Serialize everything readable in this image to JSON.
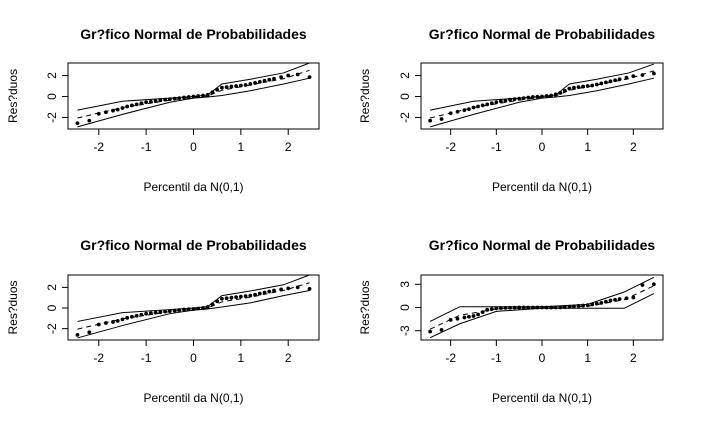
{
  "chart_data": [
    {
      "type": "scatter",
      "title": "Gr?fico Normal de Probabilidades",
      "xlabel": "Percentil da N(0,1)",
      "ylabel": "Res?duos",
      "xlim": [
        -2.65,
        2.65
      ],
      "ylim": [
        -3.1,
        3.2
      ],
      "xticks": [
        -2,
        -1,
        0,
        1,
        2
      ],
      "yticks": [
        -2,
        0,
        2
      ],
      "shape": "sigmoid",
      "points_x": [
        -2.45,
        -2.2,
        -2.0,
        -1.85,
        -1.7,
        -1.6,
        -1.5,
        -1.4,
        -1.3,
        -1.2,
        -1.1,
        -1.0,
        -0.9,
        -0.8,
        -0.7,
        -0.6,
        -0.5,
        -0.4,
        -0.3,
        -0.2,
        -0.1,
        0.0,
        0.1,
        0.2,
        0.3,
        0.4,
        0.5,
        0.6,
        0.7,
        0.8,
        0.9,
        1.0,
        1.1,
        1.2,
        1.3,
        1.4,
        1.5,
        1.6,
        1.7,
        1.85,
        2.0,
        2.2,
        2.45
      ],
      "points_y": [
        -2.55,
        -2.3,
        -1.65,
        -1.5,
        -1.35,
        -1.25,
        -1.1,
        -0.95,
        -0.85,
        -0.75,
        -0.65,
        -0.55,
        -0.5,
        -0.45,
        -0.35,
        -0.3,
        -0.25,
        -0.2,
        -0.15,
        -0.1,
        -0.05,
        0.0,
        0.05,
        0.1,
        0.15,
        0.4,
        0.65,
        0.85,
        0.9,
        0.95,
        1.0,
        1.05,
        1.1,
        1.2,
        1.3,
        1.4,
        1.5,
        1.6,
        1.7,
        1.85,
        2.0,
        2.1,
        1.85
      ],
      "envelope_upper": {
        "x": [
          -2.45,
          -1.5,
          -0.5,
          0.0,
          0.3,
          0.6,
          1.2,
          1.9,
          2.45
        ],
        "y": [
          -1.3,
          -0.45,
          -0.15,
          0.0,
          0.15,
          1.2,
          1.65,
          2.25,
          3.2
        ]
      },
      "envelope_lower": {
        "x": [
          -2.45,
          -1.5,
          -0.5,
          0.0,
          0.3,
          0.6,
          1.2,
          1.9,
          2.45
        ],
        "y": [
          -2.9,
          -1.7,
          -0.55,
          -0.15,
          -0.05,
          0.1,
          0.55,
          1.2,
          1.75
        ]
      },
      "envelope_mean": {
        "x": [
          -2.45,
          -1.5,
          -0.5,
          0.0,
          0.3,
          0.6,
          1.2,
          1.9,
          2.45
        ],
        "y": [
          -2.05,
          -1.05,
          -0.35,
          -0.05,
          0.05,
          0.6,
          1.1,
          1.7,
          2.5
        ]
      }
    },
    {
      "type": "scatter",
      "title": "Gr?fico Normal de Probabilidades",
      "xlabel": "Percentil da N(0,1)",
      "ylabel": "Res?duos",
      "xlim": [
        -2.65,
        2.65
      ],
      "ylim": [
        -3.1,
        3.2
      ],
      "xticks": [
        -2,
        -1,
        0,
        1,
        2
      ],
      "yticks": [
        -2,
        0,
        2
      ],
      "shape": "sigmoid",
      "points_x": [
        -2.45,
        -2.2,
        -2.0,
        -1.85,
        -1.7,
        -1.6,
        -1.5,
        -1.4,
        -1.3,
        -1.2,
        -1.1,
        -1.0,
        -0.9,
        -0.8,
        -0.7,
        -0.6,
        -0.5,
        -0.4,
        -0.3,
        -0.2,
        -0.1,
        0.0,
        0.1,
        0.2,
        0.3,
        0.4,
        0.5,
        0.6,
        0.7,
        0.8,
        0.9,
        1.0,
        1.1,
        1.2,
        1.3,
        1.4,
        1.5,
        1.6,
        1.7,
        1.85,
        2.0,
        2.2,
        2.45
      ],
      "points_y": [
        -2.3,
        -2.15,
        -1.6,
        -1.45,
        -1.3,
        -1.2,
        -1.05,
        -0.95,
        -0.85,
        -0.75,
        -0.65,
        -0.55,
        -0.45,
        -0.4,
        -0.3,
        -0.25,
        -0.2,
        -0.15,
        -0.1,
        -0.05,
        -0.02,
        0.0,
        0.05,
        0.1,
        0.2,
        0.35,
        0.55,
        0.75,
        0.85,
        0.9,
        0.95,
        1.0,
        1.05,
        1.15,
        1.25,
        1.35,
        1.45,
        1.55,
        1.65,
        1.8,
        1.95,
        2.05,
        2.2
      ],
      "envelope_upper": {
        "x": [
          -2.45,
          -1.5,
          -0.5,
          0.0,
          0.3,
          0.6,
          1.2,
          1.9,
          2.45
        ],
        "y": [
          -1.3,
          -0.45,
          -0.15,
          0.0,
          0.15,
          1.2,
          1.65,
          2.25,
          3.1
        ]
      },
      "envelope_lower": {
        "x": [
          -2.45,
          -1.5,
          -0.5,
          0.0,
          0.3,
          0.6,
          1.2,
          1.9,
          2.45
        ],
        "y": [
          -2.9,
          -1.7,
          -0.55,
          -0.15,
          -0.05,
          0.1,
          0.55,
          1.2,
          1.75
        ]
      },
      "envelope_mean": {
        "x": [
          -2.45,
          -1.5,
          -0.5,
          0.0,
          0.3,
          0.6,
          1.2,
          1.9,
          2.45
        ],
        "y": [
          -2.05,
          -1.05,
          -0.35,
          -0.05,
          0.05,
          0.6,
          1.1,
          1.7,
          2.45
        ]
      }
    },
    {
      "type": "scatter",
      "title": "Gr?fico Normal de Probabilidades",
      "xlabel": "Percentil da N(0,1)",
      "ylabel": "Res?duos",
      "xlim": [
        -2.65,
        2.65
      ],
      "ylim": [
        -3.1,
        3.2
      ],
      "xticks": [
        -2,
        -1,
        0,
        1,
        2
      ],
      "yticks": [
        -2,
        0,
        2
      ],
      "shape": "sigmoid",
      "points_x": [
        -2.45,
        -2.2,
        -2.0,
        -1.85,
        -1.7,
        -1.6,
        -1.5,
        -1.4,
        -1.3,
        -1.2,
        -1.1,
        -1.0,
        -0.9,
        -0.8,
        -0.7,
        -0.6,
        -0.5,
        -0.4,
        -0.3,
        -0.2,
        -0.1,
        0.0,
        0.1,
        0.2,
        0.3,
        0.4,
        0.5,
        0.6,
        0.7,
        0.8,
        0.9,
        1.0,
        1.1,
        1.2,
        1.3,
        1.4,
        1.5,
        1.6,
        1.7,
        1.85,
        2.0,
        2.2,
        2.45
      ],
      "points_y": [
        -2.6,
        -2.35,
        -1.6,
        -1.45,
        -1.35,
        -1.25,
        -1.1,
        -0.95,
        -0.85,
        -0.75,
        -0.65,
        -0.55,
        -0.5,
        -0.45,
        -0.4,
        -0.35,
        -0.3,
        -0.25,
        -0.2,
        -0.15,
        -0.12,
        -0.1,
        -0.05,
        0.0,
        0.1,
        0.35,
        0.65,
        0.9,
        0.95,
        1.0,
        1.05,
        1.1,
        1.15,
        1.2,
        1.3,
        1.4,
        1.5,
        1.6,
        1.7,
        1.8,
        1.9,
        2.0,
        1.85
      ],
      "envelope_upper": {
        "x": [
          -2.45,
          -1.5,
          -0.5,
          0.0,
          0.3,
          0.6,
          1.2,
          1.9,
          2.45
        ],
        "y": [
          -1.3,
          -0.45,
          -0.15,
          0.0,
          0.15,
          1.2,
          1.65,
          2.25,
          3.2
        ]
      },
      "envelope_lower": {
        "x": [
          -2.45,
          -1.5,
          -0.5,
          0.0,
          0.3,
          0.6,
          1.2,
          1.9,
          2.45
        ],
        "y": [
          -2.9,
          -1.7,
          -0.55,
          -0.2,
          -0.1,
          0.1,
          0.5,
          1.2,
          1.7
        ]
      },
      "envelope_mean": {
        "x": [
          -2.45,
          -1.5,
          -0.5,
          0.0,
          0.3,
          0.6,
          1.2,
          1.9,
          2.45
        ],
        "y": [
          -2.05,
          -1.05,
          -0.35,
          -0.1,
          0.0,
          0.6,
          1.05,
          1.7,
          2.45
        ]
      }
    },
    {
      "type": "scatter",
      "title": "Gr?fico Normal de Probabilidades",
      "xlabel": "Percentil da N(0,1)",
      "ylabel": "Res?duos",
      "xlim": [
        -2.65,
        2.65
      ],
      "ylim": [
        -4.2,
        4.2
      ],
      "xticks": [
        -2,
        -1,
        0,
        1,
        2
      ],
      "yticks": [
        -3,
        0,
        3
      ],
      "shape": "flat-center",
      "points_x": [
        -2.45,
        -2.2,
        -2.0,
        -1.85,
        -1.7,
        -1.6,
        -1.5,
        -1.4,
        -1.3,
        -1.2,
        -1.1,
        -1.0,
        -0.9,
        -0.8,
        -0.7,
        -0.6,
        -0.5,
        -0.4,
        -0.3,
        -0.2,
        -0.1,
        0.0,
        0.1,
        0.2,
        0.3,
        0.4,
        0.5,
        0.6,
        0.7,
        0.8,
        0.9,
        1.0,
        1.1,
        1.2,
        1.3,
        1.4,
        1.5,
        1.6,
        1.7,
        1.85,
        2.0,
        2.2,
        2.45
      ],
      "points_y": [
        -3.1,
        -2.9,
        -1.6,
        -1.45,
        -1.3,
        -1.2,
        -1.1,
        -0.9,
        -0.6,
        -0.3,
        -0.2,
        -0.12,
        -0.08,
        -0.05,
        -0.03,
        -0.02,
        -0.01,
        0.0,
        0.0,
        0.0,
        0.0,
        0.0,
        0.0,
        0.0,
        0.0,
        0.01,
        0.05,
        0.1,
        0.15,
        0.2,
        0.25,
        0.3,
        0.4,
        0.5,
        0.6,
        0.75,
        0.9,
        1.0,
        1.1,
        1.2,
        1.3,
        2.9,
        3.0
      ],
      "envelope_upper": {
        "x": [
          -2.45,
          -1.8,
          -1.0,
          0.0,
          1.0,
          1.8,
          2.45
        ],
        "y": [
          -1.8,
          0.1,
          0.1,
          0.1,
          0.4,
          2.0,
          3.9
        ]
      },
      "envelope_lower": {
        "x": [
          -2.45,
          -1.8,
          -1.0,
          0.0,
          1.0,
          1.8,
          2.45
        ],
        "y": [
          -3.9,
          -2.1,
          -0.5,
          -0.1,
          -0.1,
          -0.1,
          1.8
        ]
      },
      "envelope_mean": {
        "x": [
          -2.45,
          -1.8,
          -1.0,
          0.0,
          1.0,
          1.8,
          2.45
        ],
        "y": [
          -2.8,
          -1.0,
          -0.2,
          0.0,
          0.15,
          1.0,
          2.8
        ]
      }
    }
  ]
}
